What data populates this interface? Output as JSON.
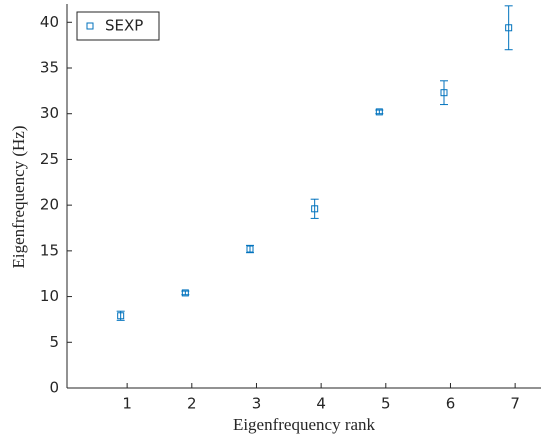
{
  "chart_data": {
    "type": "scatter",
    "xlabel": "Eigenfrequency rank",
    "ylabel": "Eigenfrequency (Hz)",
    "x": [
      0.9,
      1.9,
      2.9,
      3.9,
      4.9,
      5.9,
      6.9
    ],
    "series": [
      {
        "name": "SEXP",
        "color": "#0072bd",
        "values": [
          7.9,
          10.4,
          15.2,
          19.6,
          30.2,
          32.3,
          39.4
        ],
        "errors": [
          0.5,
          0.2,
          0.4,
          1.05,
          0.2,
          1.3,
          2.4
        ]
      }
    ],
    "xlim": [
      0.07,
      7.4
    ],
    "xticks": [
      1,
      2,
      3,
      4,
      5,
      6,
      7
    ],
    "ylim": [
      0,
      42
    ],
    "yticks": [
      0,
      5,
      10,
      15,
      20,
      25,
      30,
      35,
      40
    ],
    "legend": "upper left"
  }
}
